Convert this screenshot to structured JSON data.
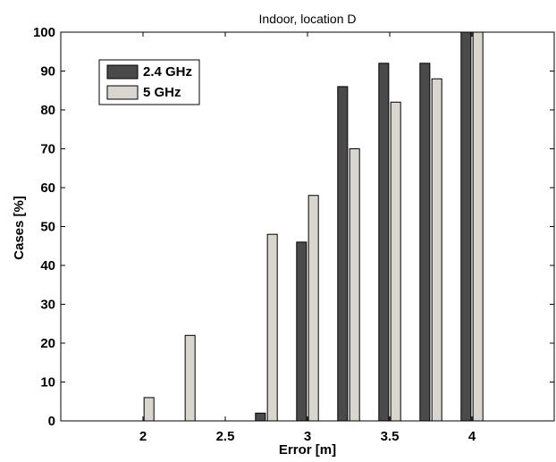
{
  "chart_data": {
    "type": "bar",
    "title": "Indoor, location D",
    "xlabel": "Error [m]",
    "ylabel": "Cases [%]",
    "x": [
      2,
      2.25,
      2.5,
      2.75,
      3,
      3.25,
      3.5,
      3.75,
      4
    ],
    "xlim": [
      1.5,
      4.5
    ],
    "ylim": [
      0,
      100
    ],
    "xticks": [
      2,
      2.5,
      3,
      3.5,
      4
    ],
    "xtick_labels": [
      "2",
      "2.5",
      "3",
      "3.5",
      "4"
    ],
    "yticks": [
      0,
      10,
      20,
      30,
      40,
      50,
      60,
      70,
      80,
      90,
      100
    ],
    "ytick_labels": [
      "0",
      "10",
      "20",
      "30",
      "40",
      "50",
      "60",
      "70",
      "80",
      "90",
      "100"
    ],
    "grid": false,
    "legend_position": "top-left",
    "series": [
      {
        "name": "2.4 GHz",
        "color": "#4a4a4a",
        "values": [
          0,
          0,
          0,
          2,
          46,
          86,
          92,
          92,
          100
        ]
      },
      {
        "name": "5 GHz",
        "color": "#d9d5cf",
        "values": [
          6,
          22,
          0,
          48,
          58,
          70,
          82,
          88,
          100
        ]
      }
    ]
  }
}
